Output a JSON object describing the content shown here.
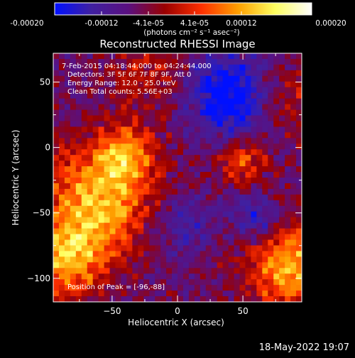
{
  "colorbar": {
    "tick_labels": [
      "-0.00020",
      "-0.00012",
      "-4.1e-05",
      "4.1e-05",
      "0.00012",
      "0.00020"
    ],
    "unit_label": "(photons cm⁻² s⁻¹ asec⁻²)",
    "range": [
      -0.0002,
      0.0002
    ],
    "colors": [
      "#0010ff",
      "#4020a0",
      "#5a1080",
      "#9a0000",
      "#ff3000",
      "#ffa000",
      "#ffff60",
      "#ffffff"
    ]
  },
  "chart_data": {
    "type": "heatmap",
    "title": "Reconstructed RHESSI Image",
    "xlabel": "Heliocentric X (arcsec)",
    "ylabel": "Heliocentric Y (arcsec)",
    "xlim": [
      -95,
      95
    ],
    "ylim": [
      -118,
      72
    ],
    "x_ticks": [
      -50,
      0,
      50
    ],
    "y_ticks": [
      50,
      0,
      -50,
      -100
    ],
    "x_tick_labels": [
      "−50",
      "0",
      "50"
    ],
    "y_tick_labels": [
      "50",
      "0",
      "−50",
      "−100"
    ],
    "annotations": [
      "7-Feb-2015 04:18:44.000 to 04:24:44.000",
      "Detectors: 3F 5F 6F 7F 8F 9F, Att 0",
      "Energy Range: 12.0 - 25.0 keV",
      "Clean     Total counts: 5.56E+03"
    ],
    "peak_label": "Position of Peak = [-96,-88]",
    "peak_position": [
      -96,
      -88
    ],
    "regions": [
      {
        "x": -60,
        "y": -40,
        "sigma": 28,
        "amp": 1.0
      },
      {
        "x": -40,
        "y": -5,
        "sigma": 15,
        "amp": 0.7
      },
      {
        "x": -85,
        "y": -85,
        "sigma": 20,
        "amp": 0.9
      },
      {
        "x": 85,
        "y": -90,
        "sigma": 22,
        "amp": 0.95
      },
      {
        "x": 50,
        "y": -10,
        "sigma": 12,
        "amp": 0.65
      },
      {
        "x": -20,
        "y": 55,
        "sigma": 22,
        "amp": 0.35
      },
      {
        "x": 80,
        "y": 40,
        "sigma": 18,
        "amp": 0.35
      },
      {
        "x": 40,
        "y": 40,
        "sigma": 22,
        "amp": -0.9
      },
      {
        "x": 60,
        "y": -55,
        "sigma": 12,
        "amp": -0.55
      },
      {
        "x": 5,
        "y": -60,
        "sigma": 18,
        "amp": -0.35
      }
    ]
  },
  "footer": {
    "timestamp": "18-May-2022 19:07"
  }
}
